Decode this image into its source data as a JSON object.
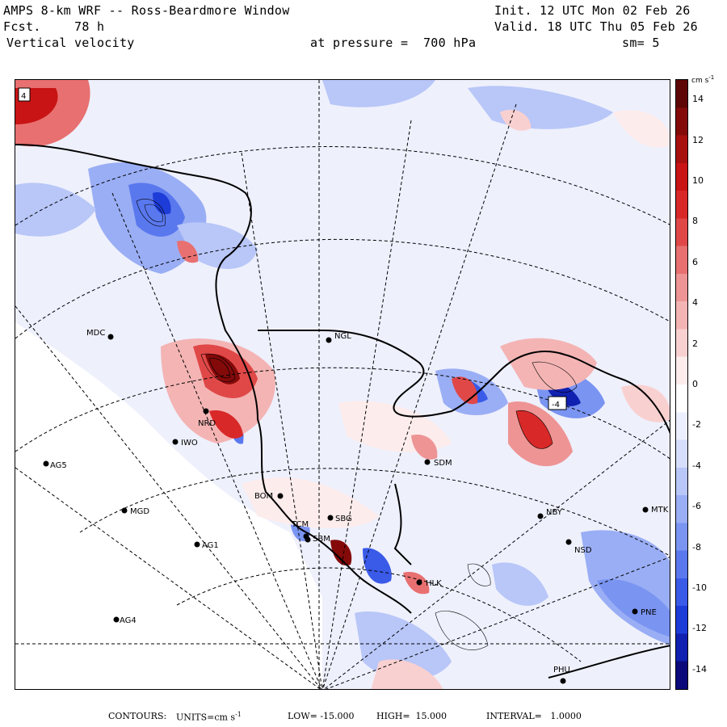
{
  "header": {
    "title": "AMPS 8-km WRF -- Ross-Beardmore Window",
    "fcst_label": "Fcst.",
    "fcst_value": "78 h",
    "field": "Vertical velocity",
    "init": "Init. 12 UTC Mon 02 Feb 26",
    "valid": "Valid. 18 UTC Thu 05 Feb 26",
    "pressure": "at pressure =  700 hPa",
    "smoothing": "sm= 5"
  },
  "colorbar": {
    "units_text": "cm s",
    "units_exp": "-1",
    "tick_labels": [
      "14",
      "12",
      "10",
      "8",
      "6",
      "4",
      "2",
      "0",
      "-2",
      "-4",
      "-6",
      "-8",
      "-10",
      "-12",
      "-14"
    ],
    "colors": [
      "#0a0a7a",
      "#1020b0",
      "#1e3cd8",
      "#3a5ae8",
      "#5a78ee",
      "#7a94f2",
      "#9aaef5",
      "#b8c6f8",
      "#d6defb",
      "#eceffd",
      "#ffffff",
      "#fdecec",
      "#f9d0d0",
      "#f4b4b4",
      "#ee9494",
      "#e87070",
      "#e04848",
      "#d82828",
      "#c81414",
      "#a81010",
      "#840a0a",
      "#5e0505"
    ]
  },
  "stations": [
    {
      "name": "MDC"
    },
    {
      "name": "NGL"
    },
    {
      "name": "IWO"
    },
    {
      "name": "AG5"
    },
    {
      "name": "MGD"
    },
    {
      "name": "AG1"
    },
    {
      "name": "AG4"
    },
    {
      "name": "SDM"
    },
    {
      "name": "BOM"
    },
    {
      "name": "SBG"
    },
    {
      "name": "TCM"
    },
    {
      "name": "SBM"
    },
    {
      "name": "HLK"
    },
    {
      "name": "NBY"
    },
    {
      "name": "NSD"
    },
    {
      "name": "MTK"
    },
    {
      "name": "PNE"
    },
    {
      "name": "PHU"
    },
    {
      "name": "NRD"
    }
  ],
  "map_labels": {
    "low_box": "-4",
    "high_box": "4"
  },
  "footer": {
    "contours": "CONTOURS:",
    "units_text": "UNITS=cm s",
    "units_exp": "-1",
    "low": "LOW= -15.000",
    "high": "HIGH=  15.000",
    "interval": "INTERVAL=   1.0000"
  }
}
